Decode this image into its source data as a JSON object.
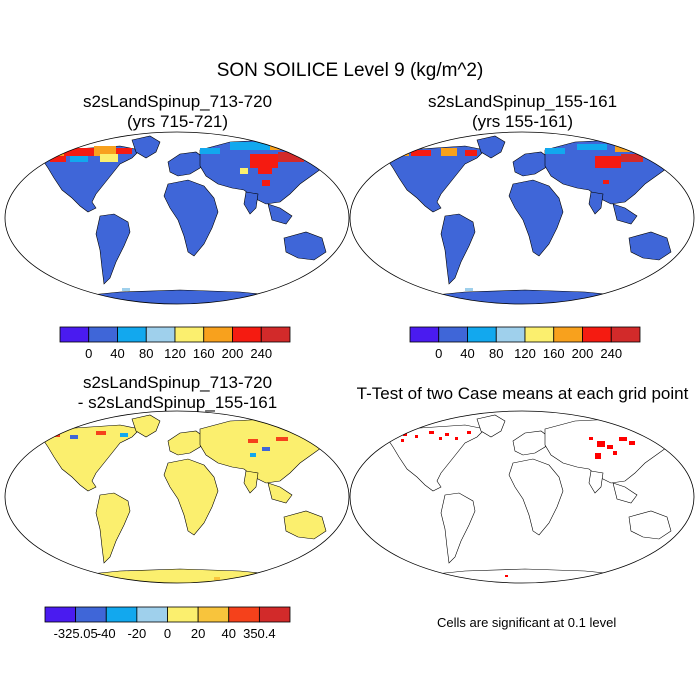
{
  "main_title": "SON SOILICE Level 9 (kg/m^2)",
  "panels": [
    {
      "id": "case1",
      "title_line1": "s2sLandSpinup_713-720",
      "title_line2": "(yrs 715-721)"
    },
    {
      "id": "case2",
      "title_line1": "s2sLandSpinup_155-161",
      "title_line2": "(yrs 155-161)"
    },
    {
      "id": "diff",
      "title_line1": "s2sLandSpinup_713-720",
      "title_line2": "- s2sLandSpinup_155-161"
    },
    {
      "id": "ttest",
      "title_line1": "T-Test of two Case means at each grid point",
      "title_line2": ""
    }
  ],
  "colorbars": {
    "abs": {
      "colors": [
        "#4a1bf0",
        "#3f66d8",
        "#12a8ee",
        "#9fd0ec",
        "#fbef6e",
        "#f8a11d",
        "#f51b11",
        "#d22a2a"
      ],
      "labels": [
        "0",
        "40",
        "80",
        "120",
        "160",
        "200",
        "240"
      ]
    },
    "diff": {
      "colors": [
        "#4a1bf0",
        "#3f66d8",
        "#12a8ee",
        "#9fd0ec",
        "#fbef6e",
        "#f8c43c",
        "#f5411b",
        "#d22a2a"
      ],
      "labels": [
        "-325.05",
        "-40",
        "-20",
        "0",
        "20",
        "40",
        "350.4"
      ]
    }
  },
  "land_colors": {
    "abs_base": "#3f66d8",
    "diff_base": "#fbef6e",
    "ttest_base": "#ffffff",
    "significant": "#ff0000"
  },
  "significance_note": "Cells are significant at 0.1 level"
}
